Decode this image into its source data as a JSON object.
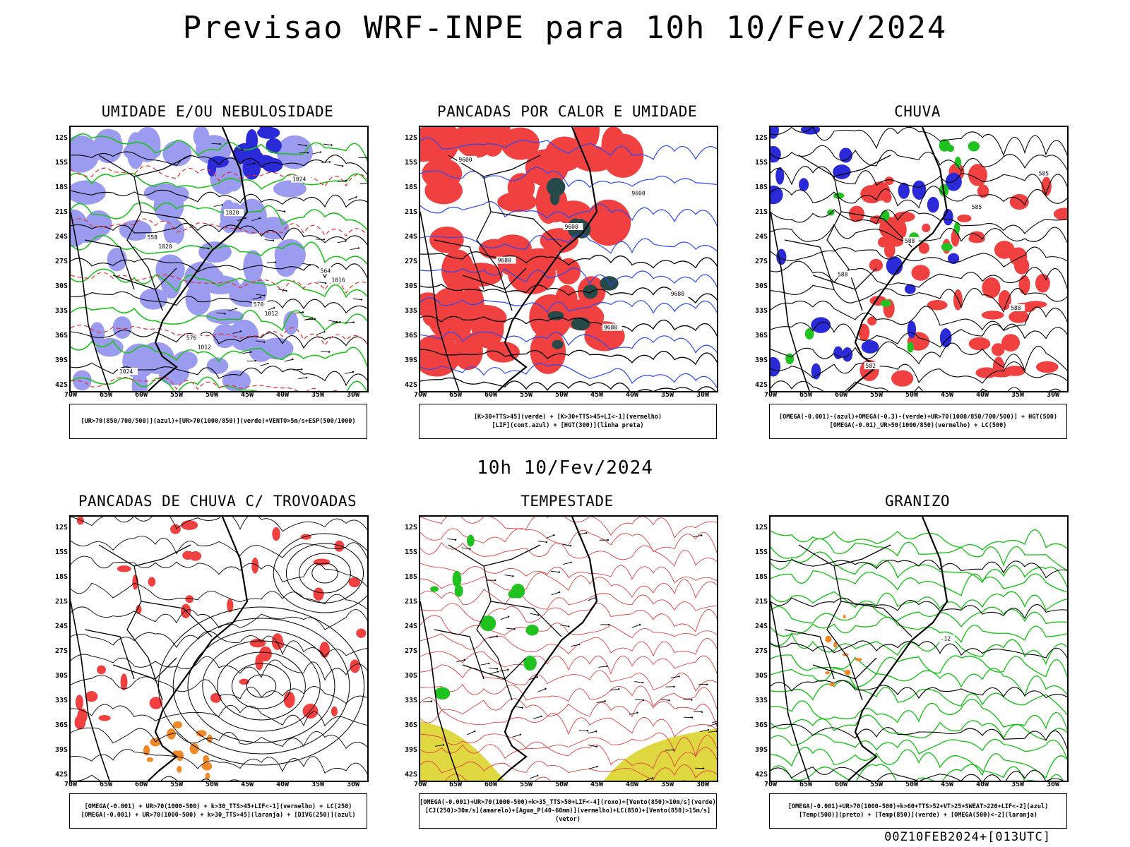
{
  "header": {
    "title": "Previsao WRF-INPE  para 10h 10/Fev/2024",
    "middle_label": "10h 10/Fev/2024",
    "footer_code": "00Z10FEB2024+[013UTC]"
  },
  "axes": {
    "lat_labels": [
      "12S",
      "15S",
      "18S",
      "21S",
      "24S",
      "27S",
      "30S",
      "33S",
      "36S",
      "39S",
      "42S"
    ],
    "lon_labels": [
      "70W",
      "65W",
      "60W",
      "55W",
      "50W",
      "45W",
      "40W",
      "35W",
      "30W"
    ]
  },
  "colors": {
    "blue_fill": "#9b9bf0",
    "dark_blue": "#2a2ad8",
    "green": "#1fc21f",
    "red_fill": "#f04040",
    "dark_teal": "#264a4a",
    "blue_contour": "#2a4af0",
    "orange": "#f08a28",
    "yellow": "#e0d840",
    "black": "#000000"
  },
  "panels": [
    {
      "id": "umidade",
      "title": "UMIDADE E/OU NEBULOSIDADE",
      "legend": [
        "[UR>70(850/700/500)](azul)+[UR>70(1000/850)](verde)+VENTO>5m/s+ESP(500/1000)"
      ],
      "contour_labels": [
        "1012",
        "1012",
        "1016",
        "1020",
        "1020",
        "1024",
        "1024",
        "576",
        "570",
        "564",
        "558"
      ]
    },
    {
      "id": "pancadas-calor",
      "title": "PANCADAS POR CALOR E UMIDADE",
      "legend": [
        "[K>30+TTS>45](verde) + [K>30+TTS>45+LI<-1](vermelho)",
        "[LIF](cont.azul) + [HGT(300)](linha preta)"
      ],
      "contour_labels": [
        "9680",
        "9680",
        "9680",
        "9600",
        "9600",
        "9600"
      ]
    },
    {
      "id": "chuva",
      "title": "CHUVA",
      "legend": [
        "[OMEGA(-0.001)-(azul)+OMEGA(-0.3)-(verde)+UR>70(1000/850/700/500)] + HGT(500)",
        "[OMEGA(-0.01)_UR>50(1000/850)(vermelho) + LC(500)"
      ],
      "contour_labels": [
        "588",
        "588",
        "588",
        "585",
        "585",
        "582"
      ]
    },
    {
      "id": "trovoadas",
      "title": "PANCADAS DE CHUVA C/ TROVOADAS",
      "legend": [
        "[OMEGA(-0.001) + UR>70(1000-500) + k>30_TTS>45+LIF<-1](vermelho) + LC(250)",
        "[OMEGA(-0.001) + UR>70(1000-500) + k>30_TTS>45](laranja) + [DIVG(250)](azul)"
      ],
      "contour_labels": []
    },
    {
      "id": "tempestade",
      "title": "TEMPESTADE",
      "legend": [
        "[OMEGA(-0.001)+UR>70(1000-500)+k>35_TTS>50+LIF<-4](roxo)+[Vento(850)>10m/s](verde)",
        "[CJ(250)>30m/s](amarelo)+[Agua_P(40-60mm)](vermelho)+LC(850)+[Vento(850)>15m/s](vetor)"
      ],
      "contour_labels": []
    },
    {
      "id": "granizo",
      "title": "GRANIZO",
      "legend": [
        "[OMEGA(-0.001)+UR>70(1000-500)+k>60+TTS>52+VT>25+SWEAT>220+LIF<-2](azul)",
        "[Temp(500)](preto) + [Temp(850)](verde) + [OMEGA(500)<-2](laranja)"
      ],
      "contour_labels": [
        "-12"
      ]
    }
  ]
}
